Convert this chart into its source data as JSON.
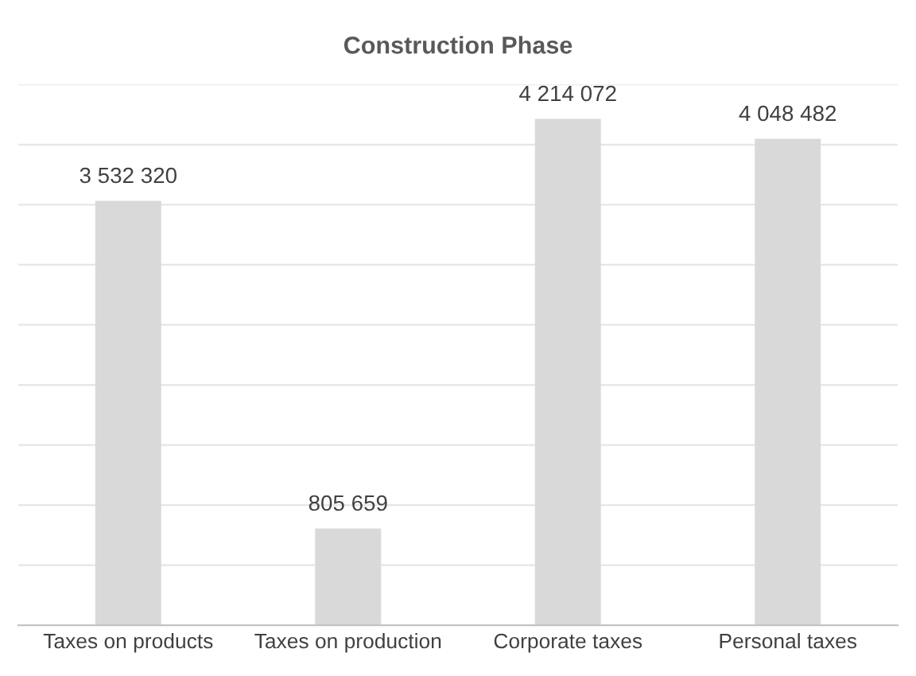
{
  "chart_data": {
    "type": "bar",
    "title": "Construction Phase",
    "categories": [
      "Taxes on products",
      "Taxes on production",
      "Corporate taxes",
      "Personal taxes"
    ],
    "values": [
      3532320,
      805659,
      4214072,
      4048482
    ],
    "value_labels": [
      "3 532 320",
      "805 659",
      "4 214 072",
      "4 048 482"
    ],
    "color": "#d9d9d9",
    "ylim": [
      0,
      4500000
    ],
    "yticks": [
      {
        "value": 0,
        "label": null
      },
      {
        "value": 500000,
        "label": null
      },
      {
        "value": 1000000,
        "label": null
      },
      {
        "value": 1500000,
        "label": null
      },
      {
        "value": 2000000,
        "label": null
      },
      {
        "value": 2500000,
        "label": null
      },
      {
        "value": 3000000,
        "label": null
      },
      {
        "value": 3500000,
        "label": null
      },
      {
        "value": 4000000,
        "label": null
      },
      {
        "value": 4500000,
        "label": null
      }
    ],
    "grid": "y",
    "legend": false,
    "tick_labels": "x"
  }
}
